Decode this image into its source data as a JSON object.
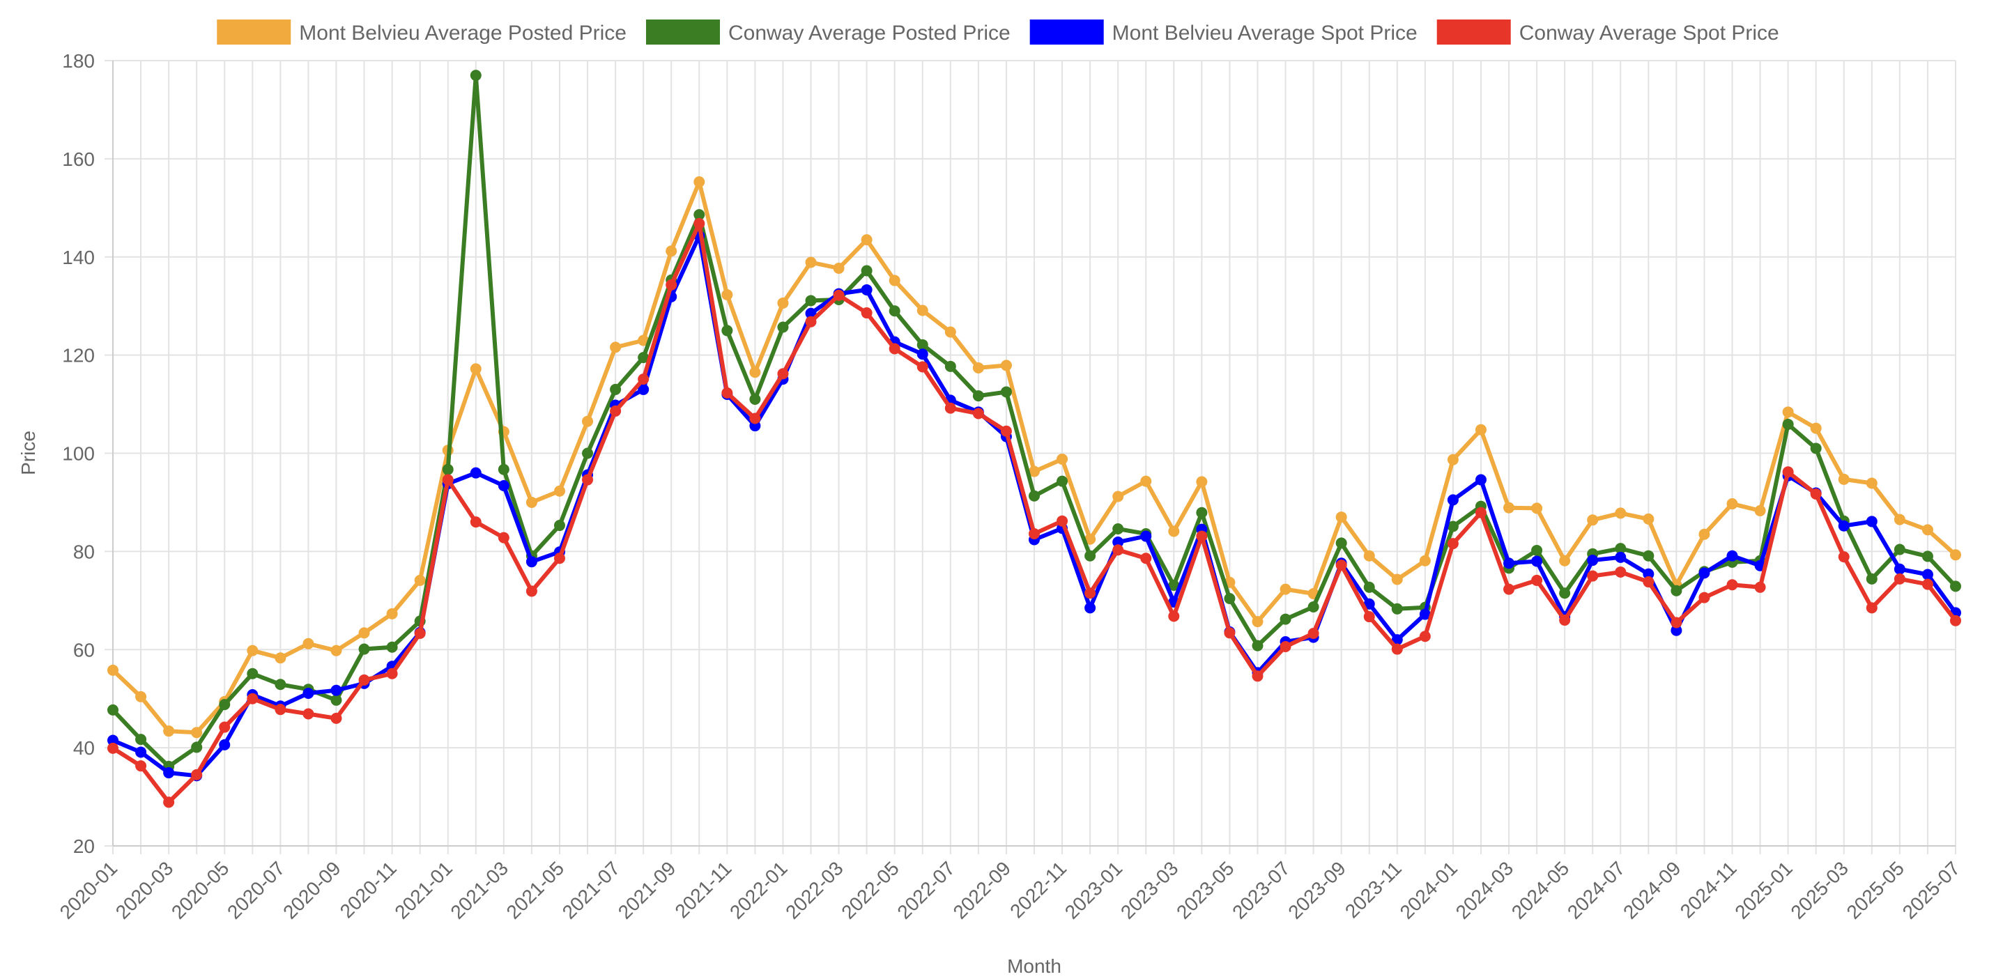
{
  "chart_data": {
    "type": "line",
    "xlabel": "Month",
    "ylabel": "Price",
    "ylim": [
      20,
      180
    ],
    "yticks": [
      20,
      40,
      60,
      80,
      100,
      120,
      140,
      160,
      180
    ],
    "grid": true,
    "legend_position": "top",
    "x": [
      "2020-01",
      "2020-02",
      "2020-03",
      "2020-04",
      "2020-05",
      "2020-06",
      "2020-07",
      "2020-08",
      "2020-09",
      "2020-10",
      "2020-11",
      "2020-12",
      "2021-01",
      "2021-02",
      "2021-03",
      "2021-04",
      "2021-05",
      "2021-06",
      "2021-07",
      "2021-08",
      "2021-09",
      "2021-10",
      "2021-11",
      "2021-12",
      "2022-01",
      "2022-02",
      "2022-03",
      "2022-04",
      "2022-05",
      "2022-06",
      "2022-07",
      "2022-08",
      "2022-09",
      "2022-10",
      "2022-11",
      "2022-12",
      "2023-01",
      "2023-02",
      "2023-03",
      "2023-04",
      "2023-05",
      "2023-06",
      "2023-07",
      "2023-08",
      "2023-09",
      "2023-10",
      "2023-11",
      "2023-12",
      "2024-01",
      "2024-02",
      "2024-03",
      "2024-04",
      "2024-05",
      "2024-06",
      "2024-07",
      "2024-08",
      "2024-09",
      "2024-10",
      "2024-11",
      "2024-12",
      "2025-01",
      "2025-02",
      "2025-03",
      "2025-04",
      "2025-05",
      "2025-06",
      "2025-07"
    ],
    "x_tick_labels": [
      "2020-01",
      "2020-03",
      "2020-05",
      "2020-07",
      "2020-09",
      "2020-11",
      "2021-01",
      "2021-03",
      "2021-05",
      "2021-07",
      "2021-09",
      "2021-11",
      "2022-01",
      "2022-03",
      "2022-05",
      "2022-07",
      "2022-09",
      "2022-11",
      "2023-01",
      "2023-03",
      "2023-05",
      "2023-07",
      "2023-09",
      "2023-11",
      "2024-01",
      "2024-03",
      "2024-05",
      "2024-07",
      "2024-09",
      "2024-11",
      "2025-01",
      "2025-03",
      "2025-05",
      "2025-07"
    ],
    "series": [
      {
        "name": "Mont Belvieu Average Posted Price",
        "color": "#F0AA3E",
        "values": [
          55.8,
          50.4,
          43.4,
          43.1,
          49.4,
          59.8,
          58.3,
          61.2,
          59.8,
          63.4,
          67.3,
          74.1,
          100.6,
          117.2,
          104.4,
          90.0,
          92.3,
          106.5,
          121.6,
          123.0,
          141.2,
          155.3,
          132.3,
          116.5,
          130.6,
          138.9,
          137.7,
          143.5,
          135.2,
          129.1,
          124.7,
          117.4,
          117.9,
          96.3,
          98.8,
          82.5,
          91.2,
          94.3,
          84.1,
          94.2,
          73.7,
          65.7,
          72.3,
          71.4,
          87.0,
          79.1,
          74.3,
          78.1,
          98.7,
          104.8,
          88.9,
          88.8,
          78.1,
          86.4,
          87.8,
          86.6,
          73.2,
          83.5,
          89.7,
          88.3,
          108.4,
          105.1,
          94.7,
          93.9,
          86.5,
          84.4,
          79.3
        ]
      },
      {
        "name": "Conway Average Posted Price",
        "color": "#3B7D23",
        "values": [
          47.7,
          41.7,
          36.2,
          40.1,
          48.8,
          55.1,
          52.9,
          51.9,
          49.7,
          60.1,
          60.5,
          65.8,
          96.7,
          177.0,
          96.7,
          79.1,
          85.3,
          100.0,
          113.0,
          119.5,
          135.3,
          148.6,
          125.0,
          111.0,
          125.7,
          131.1,
          131.3,
          137.2,
          129.0,
          122.1,
          117.7,
          111.7,
          112.5,
          91.3,
          94.3,
          79.1,
          84.6,
          83.6,
          73.1,
          87.9,
          70.4,
          60.8,
          66.2,
          68.7,
          81.7,
          72.7,
          68.3,
          68.6,
          85.1,
          89.2,
          76.6,
          80.2,
          71.5,
          79.5,
          80.6,
          79.1,
          72.0,
          75.9,
          77.8,
          78.1,
          105.9,
          101.0,
          86.2,
          74.4,
          80.4,
          79.0,
          72.9
        ]
      },
      {
        "name": "Mont Belvieu Average Spot Price",
        "color": "#0000FF",
        "values": [
          41.5,
          39.1,
          34.9,
          34.3,
          40.6,
          50.8,
          48.5,
          51.1,
          51.7,
          53.1,
          56.6,
          63.5,
          93.8,
          96.0,
          93.4,
          77.9,
          79.9,
          95.6,
          109.8,
          113.0,
          131.9,
          144.3,
          112.0,
          105.6,
          115.1,
          128.5,
          132.5,
          133.3,
          122.7,
          120.2,
          110.8,
          108.4,
          103.4,
          82.4,
          84.7,
          68.5,
          81.9,
          83.1,
          69.7,
          84.5,
          63.6,
          55.3,
          61.6,
          62.5,
          77.6,
          69.3,
          62.0,
          67.2,
          90.5,
          94.6,
          77.6,
          78.0,
          66.7,
          78.2,
          78.8,
          75.4,
          63.9,
          75.6,
          79.1,
          77.1,
          95.4,
          91.9,
          85.2,
          86.1,
          76.4,
          75.3,
          67.5
        ]
      },
      {
        "name": "Conway Average Spot Price",
        "color": "#E8352A",
        "values": [
          39.9,
          36.3,
          28.9,
          34.5,
          44.2,
          50.0,
          47.8,
          46.9,
          46.0,
          53.8,
          55.1,
          63.3,
          94.6,
          86.0,
          82.8,
          71.9,
          78.6,
          94.6,
          108.6,
          115.1,
          134.3,
          146.8,
          112.3,
          107.1,
          116.2,
          126.8,
          132.2,
          128.6,
          121.3,
          117.6,
          109.2,
          108.1,
          104.5,
          83.6,
          86.2,
          71.5,
          80.3,
          78.6,
          66.8,
          83.1,
          63.4,
          54.6,
          60.6,
          63.3,
          77.2,
          66.7,
          60.1,
          62.7,
          81.6,
          87.9,
          72.3,
          74.1,
          66.0,
          75.0,
          75.8,
          73.8,
          65.5,
          70.6,
          73.2,
          72.7,
          96.2,
          91.7,
          78.9,
          68.5,
          74.4,
          73.3,
          65.9
        ]
      }
    ]
  }
}
